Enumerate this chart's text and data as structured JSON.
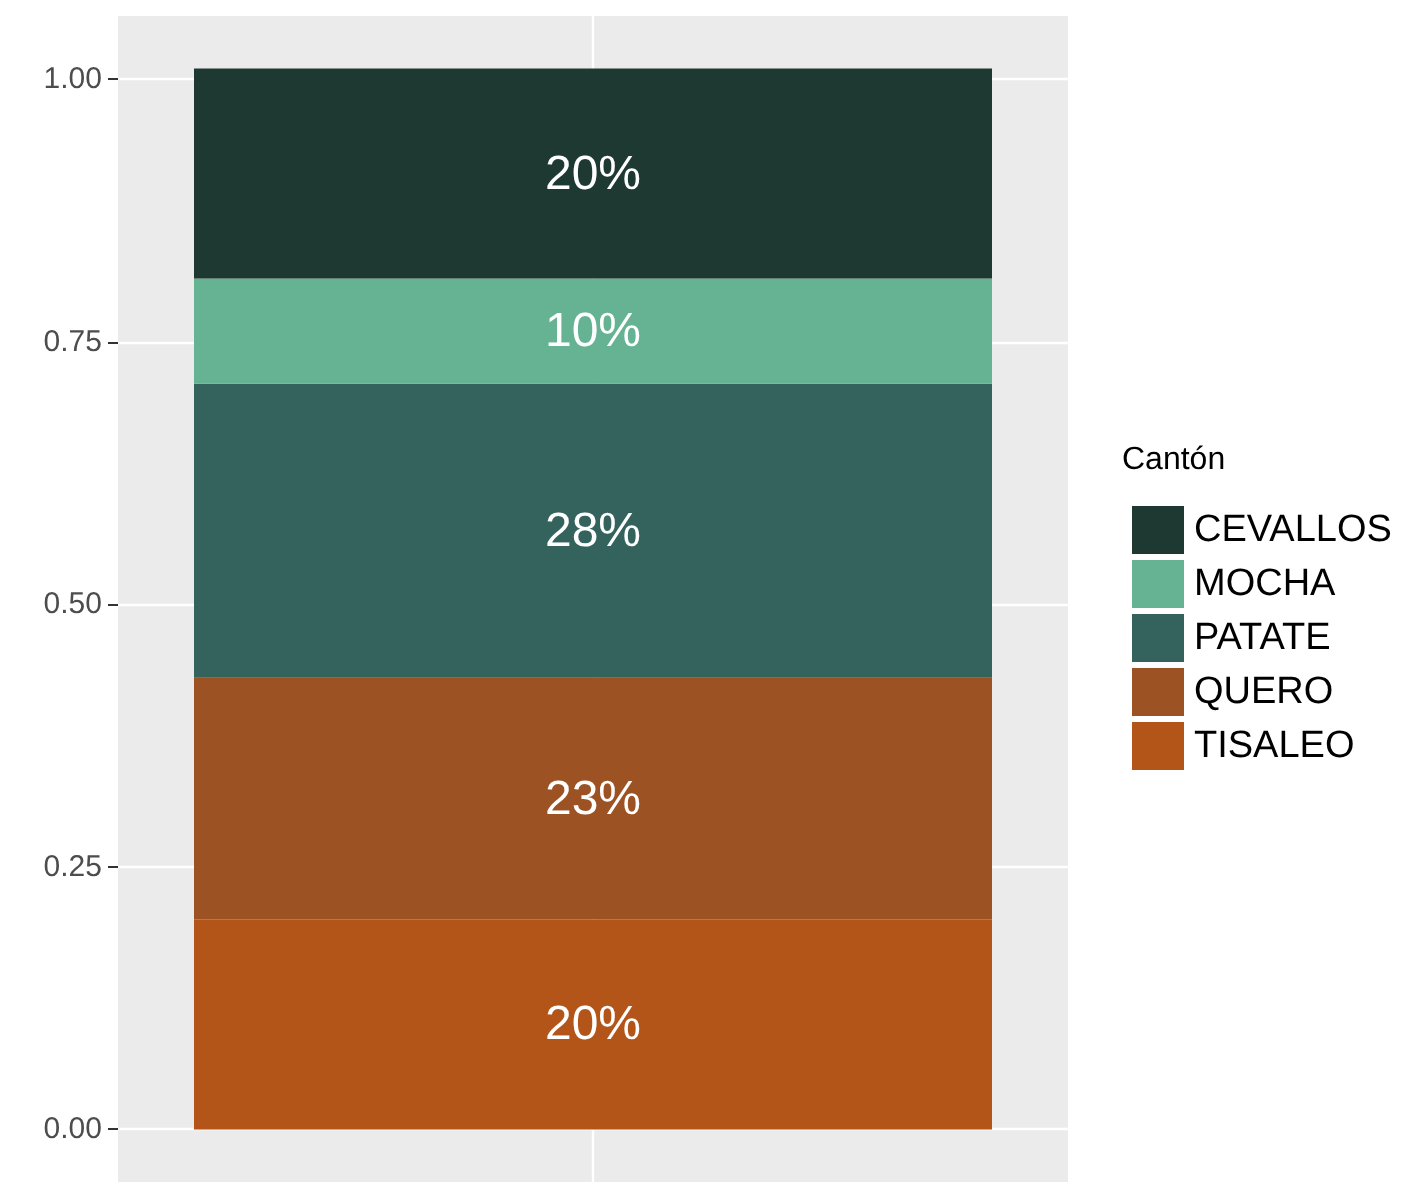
{
  "chart_data": {
    "type": "bar",
    "stacked": true,
    "legend_title": "Cantón",
    "legend": "right",
    "grid": true,
    "categories": [
      null
    ],
    "series": [
      {
        "name": "TISALEO",
        "color": "#b35418",
        "values": [
          0.2
        ],
        "value_labels": [
          "20%"
        ]
      },
      {
        "name": "QUERO",
        "color": "#9c5223",
        "values": [
          0.23
        ],
        "value_labels": [
          "23%"
        ]
      },
      {
        "name": "PATATE",
        "color": "#33635c",
        "values": [
          0.28
        ],
        "value_labels": [
          "28%"
        ]
      },
      {
        "name": "MOCHA",
        "color": "#66b394",
        "values": [
          0.1
        ],
        "value_labels": [
          "10%"
        ]
      },
      {
        "name": "CEVALLOS",
        "color": "#1e3932",
        "values": [
          0.2
        ],
        "value_labels": [
          "20%"
        ]
      }
    ],
    "ylim": [
      -0.05,
      1.06
    ],
    "yticks": [
      {
        "value": 0,
        "label": "0.00"
      },
      {
        "value": 0.25,
        "label": "0.25"
      },
      {
        "value": 0.5,
        "label": "0.50"
      },
      {
        "value": 0.75,
        "label": "0.75"
      },
      {
        "value": 1,
        "label": "1.00"
      }
    ]
  }
}
